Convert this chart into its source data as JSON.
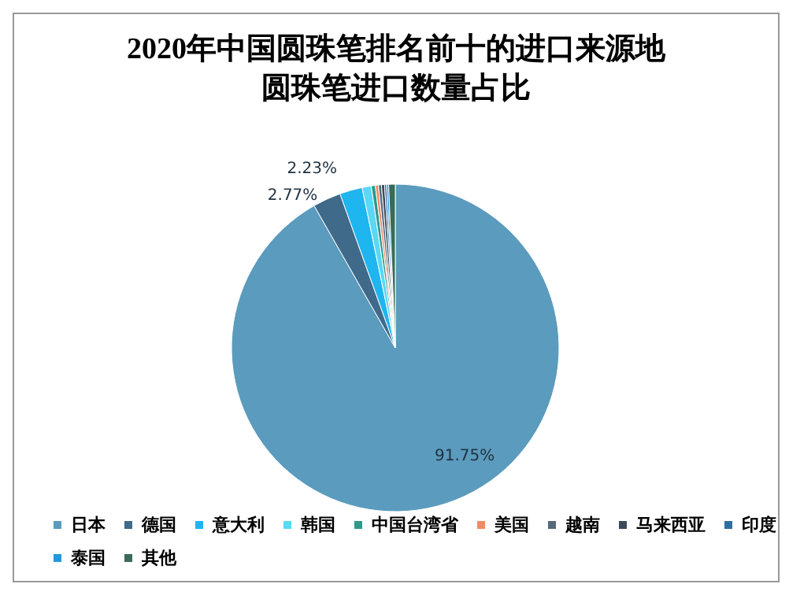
{
  "chart_data": {
    "type": "pie",
    "title": "2020年中国圆珠笔排名前十的进口来源地",
    "subtitle": "圆珠笔进口数量占比",
    "categories": [
      "日本",
      "德国",
      "意大利",
      "韩国",
      "中国台湾省",
      "美国",
      "越南",
      "马来西亚",
      "印度",
      "泰国",
      "其他"
    ],
    "values": [
      91.75,
      2.77,
      2.23,
      0.9,
      0.4,
      0.3,
      0.3,
      0.3,
      0.2,
      0.2,
      0.65
    ],
    "value_labels": [
      "91.75%",
      "2.77%",
      "2.23%",
      null,
      null,
      null,
      null,
      null,
      null,
      null,
      null
    ],
    "colors": [
      "#5b9bbd",
      "#3f6a8a",
      "#1fb5ee",
      "#5ad8f5",
      "#2a9a8a",
      "#f08a6a",
      "#556a7a",
      "#3a4a5a",
      "#2f6f9f",
      "#1e9ae0",
      "#3a6a5a"
    ],
    "legend": "bottom"
  }
}
